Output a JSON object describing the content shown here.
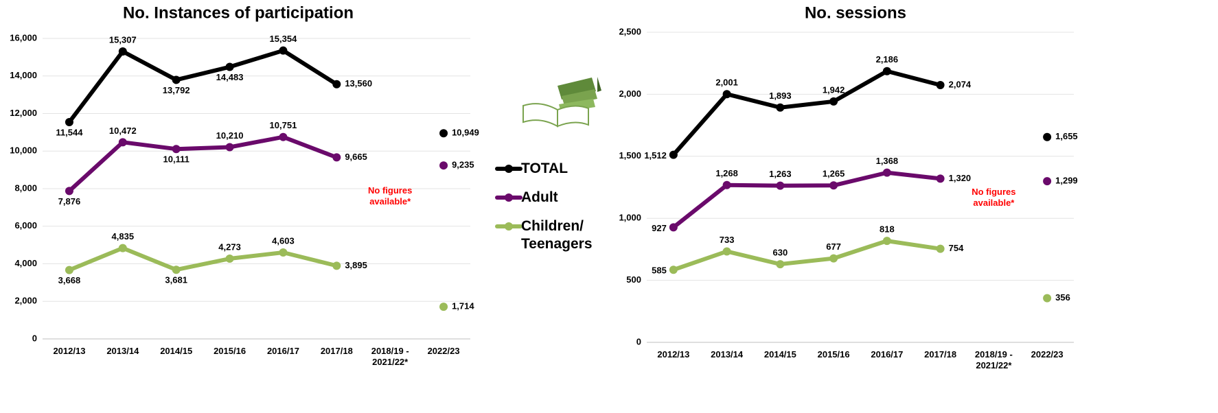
{
  "chart_data": [
    {
      "type": "line",
      "title": "No. Instances of participation",
      "categories": [
        "2012/13",
        "2013/14",
        "2014/15",
        "2015/16",
        "2016/17",
        "2017/18",
        "2018/19 - 2021/22*",
        "2022/23"
      ],
      "series": [
        {
          "name": "TOTAL",
          "color": "#000000",
          "values": [
            11544,
            15307,
            13792,
            14483,
            15354,
            13560,
            null,
            10949
          ],
          "value_labels": [
            "11,544",
            "15,307",
            "13,792",
            "14,483",
            "15,354",
            "13,560",
            null,
            "10,949"
          ]
        },
        {
          "name": "Adult",
          "color": "#6a0a6b",
          "values": [
            7876,
            10472,
            10111,
            10210,
            10751,
            9665,
            null,
            9235
          ],
          "value_labels": [
            "7,876",
            "10,472",
            "10,111",
            "10,210",
            "10,751",
            "9,665",
            null,
            "9,235"
          ]
        },
        {
          "name": "Children/ Teenagers",
          "color": "#9bbb59",
          "values": [
            3668,
            4835,
            3681,
            4273,
            4603,
            3895,
            null,
            1714
          ],
          "value_labels": [
            "3,668",
            "4,835",
            "3,681",
            "4,273",
            "4,603",
            "3,895",
            null,
            "1,714"
          ]
        }
      ],
      "ylim": [
        0,
        16000
      ],
      "yticks": [
        0,
        {
          "value": 2000,
          "label": "2,000"
        },
        {
          "value": 4000,
          "label": "4,000"
        },
        {
          "value": 6000,
          "label": "6,000"
        },
        {
          "value": 8000,
          "label": "8,000"
        },
        {
          "value": 10000,
          "label": "10,000"
        },
        {
          "value": 12000,
          "label": "12,000"
        },
        {
          "value": 14000,
          "label": "14,000"
        },
        {
          "value": 16000,
          "label": "16,000"
        }
      ],
      "grid": true,
      "annotation": "No figures available*"
    },
    {
      "type": "line",
      "title": "No. sessions",
      "categories": [
        "2012/13",
        "2013/14",
        "2014/15",
        "2015/16",
        "2016/17",
        "2017/18",
        "2018/19 - 2021/22*",
        "2022/23"
      ],
      "series": [
        {
          "color": "#000000",
          "values": [
            1512,
            2001,
            1893,
            1942,
            2186,
            2074,
            null,
            1655
          ],
          "value_labels": [
            "1,512",
            "2,001",
            "1,893",
            "1,942",
            "2,186",
            "2,074",
            null,
            "1,655"
          ]
        },
        {
          "color": "#6a0a6b",
          "values": [
            927,
            1268,
            1263,
            1265,
            1368,
            1320,
            null,
            1299
          ],
          "value_labels": [
            "927",
            "1,268",
            "1,263",
            "1,265",
            "1,368",
            "1,320",
            null,
            "1,299"
          ]
        },
        {
          "color": "#9bbb59",
          "values": [
            585,
            733,
            630,
            677,
            818,
            754,
            null,
            356
          ],
          "value_labels": [
            "585",
            "733",
            "630",
            "677",
            "818",
            "754",
            null,
            "356"
          ]
        }
      ],
      "ylim": [
        0,
        2500
      ],
      "yticks": [
        0,
        500,
        {
          "value": 1000,
          "label": "1,000"
        },
        {
          "value": 1500,
          "label": "1,500"
        },
        {
          "value": 2000,
          "label": "2,000"
        },
        {
          "value": 2500,
          "label": "2,500"
        }
      ],
      "grid": true,
      "annotation": "No figures available*"
    }
  ]
}
